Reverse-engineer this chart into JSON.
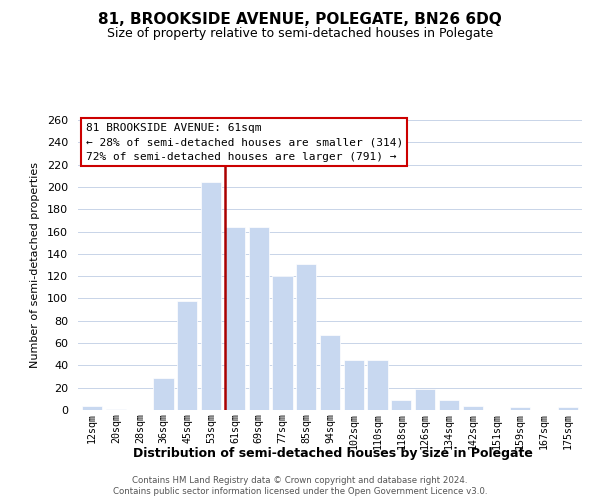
{
  "title": "81, BROOKSIDE AVENUE, POLEGATE, BN26 6DQ",
  "subtitle": "Size of property relative to semi-detached houses in Polegate",
  "xlabel": "Distribution of semi-detached houses by size in Polegate",
  "ylabel": "Number of semi-detached properties",
  "bins": [
    "12sqm",
    "20sqm",
    "28sqm",
    "36sqm",
    "45sqm",
    "53sqm",
    "61sqm",
    "69sqm",
    "77sqm",
    "85sqm",
    "94sqm",
    "102sqm",
    "110sqm",
    "118sqm",
    "126sqm",
    "134sqm",
    "142sqm",
    "151sqm",
    "159sqm",
    "167sqm",
    "175sqm"
  ],
  "values": [
    4,
    1,
    0,
    29,
    98,
    204,
    164,
    164,
    120,
    131,
    67,
    45,
    45,
    9,
    19,
    9,
    4,
    0,
    3,
    0,
    3
  ],
  "highlight_index": 6,
  "bar_color": "#c8d8f0",
  "highlight_line_color": "#aa0000",
  "ylim": [
    0,
    260
  ],
  "yticks": [
    0,
    20,
    40,
    60,
    80,
    100,
    120,
    140,
    160,
    180,
    200,
    220,
    240,
    260
  ],
  "annotation_title": "81 BROOKSIDE AVENUE: 61sqm",
  "annotation_line1": "← 28% of semi-detached houses are smaller (314)",
  "annotation_line2": "72% of semi-detached houses are larger (791) →",
  "footer1": "Contains HM Land Registry data © Crown copyright and database right 2024.",
  "footer2": "Contains public sector information licensed under the Open Government Licence v3.0.",
  "background_color": "#ffffff",
  "grid_color": "#c8d4e8"
}
